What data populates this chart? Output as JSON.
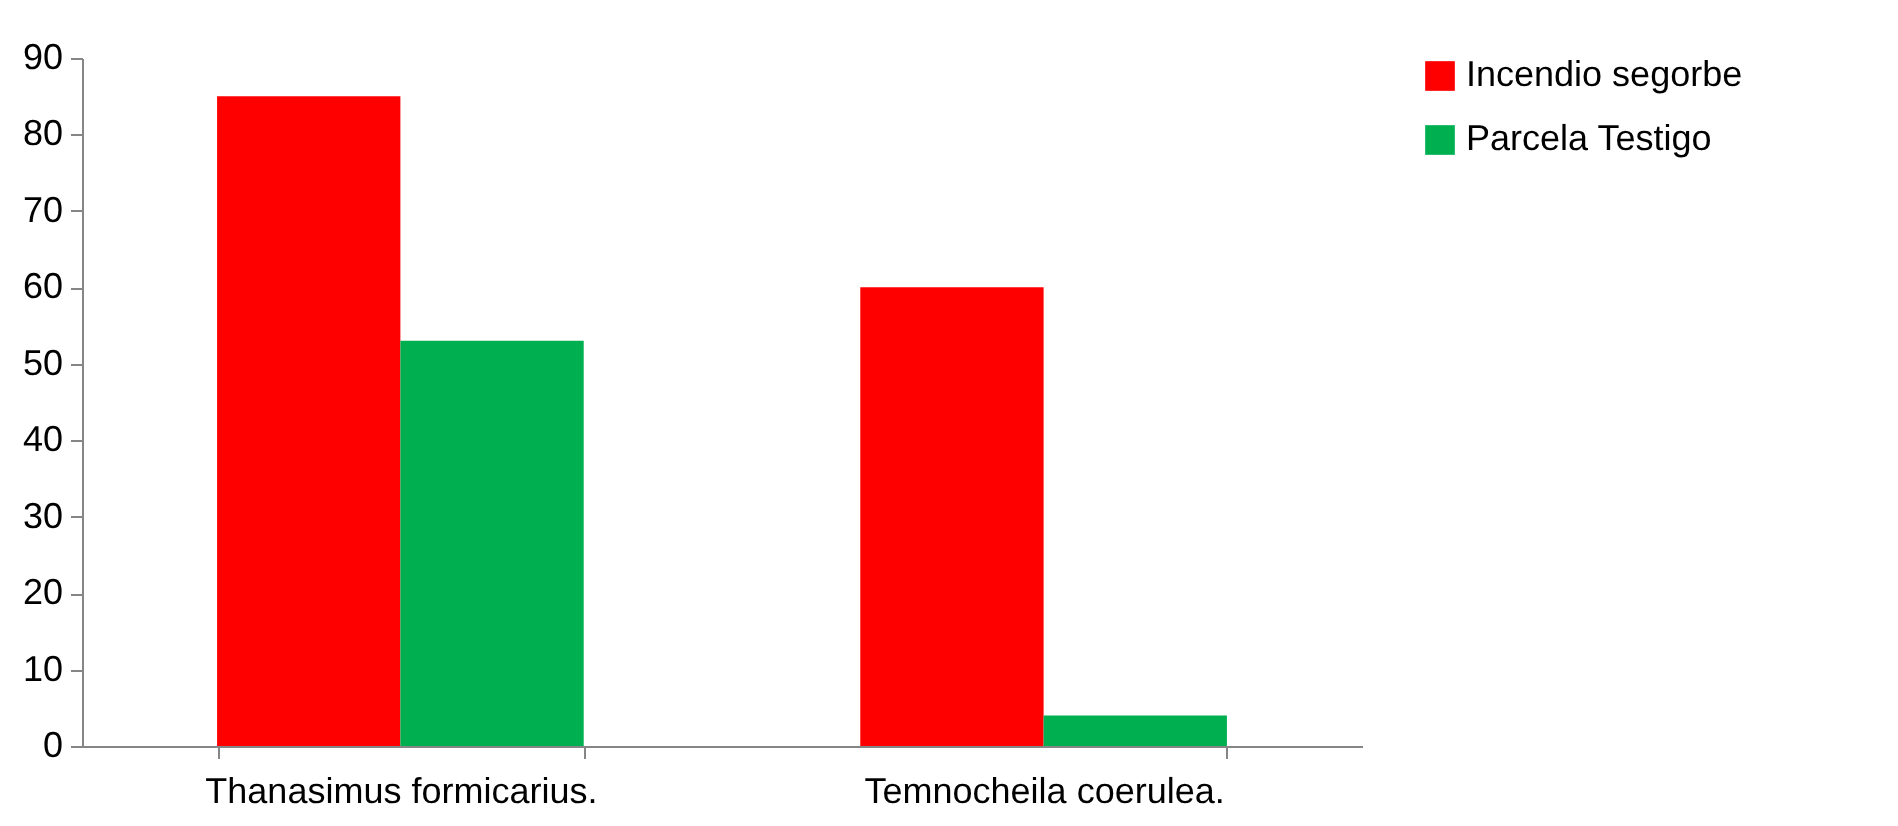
{
  "chart_data": {
    "type": "bar",
    "categories": [
      "Thanasimus formicarius.",
      "Temnocheila coerulea."
    ],
    "series": [
      {
        "name": "Incendio segorbe",
        "color": "#ff0000",
        "values": [
          85,
          60
        ]
      },
      {
        "name": "Parcela Testigo",
        "color": "#00b050",
        "values": [
          53,
          4
        ]
      }
    ],
    "ylim": [
      0,
      90
    ],
    "yticks": [
      0,
      10,
      20,
      30,
      40,
      50,
      60,
      70,
      80,
      90
    ],
    "grid": false,
    "legend": "right"
  }
}
